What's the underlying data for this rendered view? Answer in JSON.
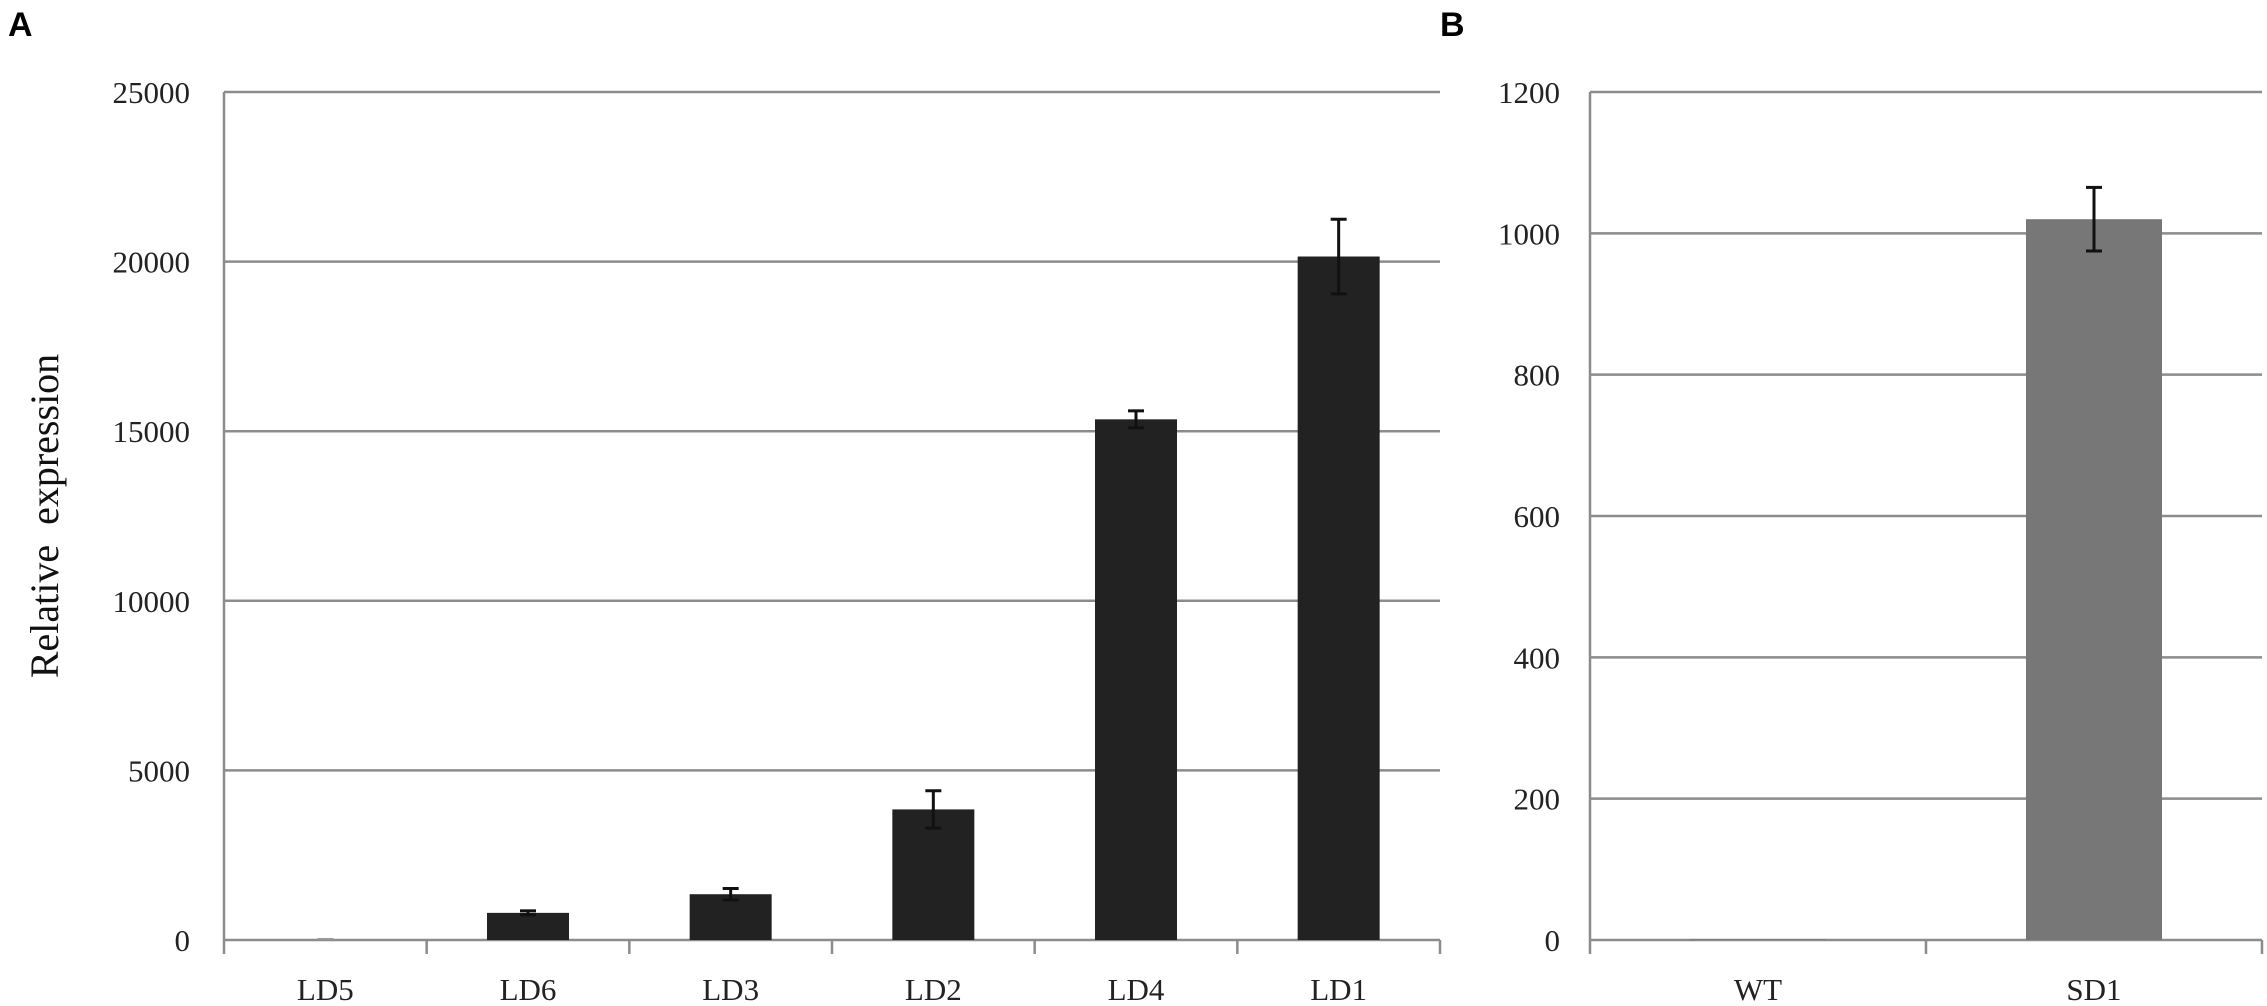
{
  "figure": {
    "panel_labels": [
      "A",
      "B"
    ]
  },
  "chart_data": [
    {
      "type": "bar",
      "panel": "A",
      "ylabel": "Relative  expression",
      "xlabel": "",
      "ylim": [
        0,
        25000
      ],
      "yticks": [
        0,
        5000,
        10000,
        15000,
        20000,
        25000
      ],
      "grid": true,
      "bar_color": "#222222",
      "categories": [
        "LD5",
        "LD6",
        "LD3",
        "LD2",
        "LD4",
        "LD1"
      ],
      "series": [
        {
          "values": [
            0,
            800,
            1350,
            3850,
            15350,
            20150
          ],
          "error": [
            0,
            60,
            170,
            550,
            250,
            1100
          ]
        }
      ]
    },
    {
      "type": "bar",
      "panel": "B",
      "ylabel": "",
      "xlabel": "",
      "ylim": [
        0,
        1200
      ],
      "yticks": [
        0,
        200,
        400,
        600,
        800,
        1000,
        1200
      ],
      "grid": true,
      "bar_color": "#777777",
      "categories": [
        "WT",
        "SD1"
      ],
      "series": [
        {
          "values": [
            1,
            1020
          ],
          "error": [
            0,
            45
          ]
        }
      ]
    }
  ]
}
